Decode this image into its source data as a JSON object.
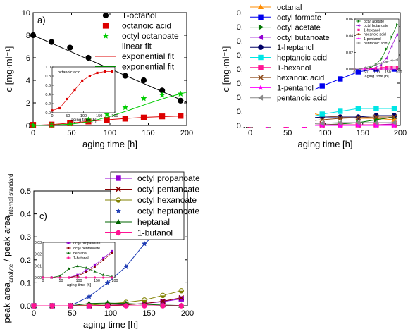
{
  "chart_data": [
    {
      "type": "scatter",
      "panel_label": "a)",
      "xlabel": "aging time [h]",
      "ylabel": "c [mg·ml⁻¹]",
      "xlim": [
        0,
        200
      ],
      "ylim": [
        0,
        10
      ],
      "xticks": [
        "0",
        "50",
        "100",
        "150",
        "200"
      ],
      "yticks": [
        "0",
        "2",
        "4",
        "6",
        "8",
        "10"
      ],
      "legend_position": "top-right",
      "series": [
        {
          "name": "1-octanol",
          "color": "#000000",
          "marker": "circle",
          "connect": false,
          "x": [
            0,
            24,
            48,
            72,
            96,
            120,
            144,
            168,
            192
          ],
          "y": [
            8.0,
            7.4,
            6.9,
            6.0,
            5.0,
            4.4,
            4.0,
            3.1,
            2.2
          ]
        },
        {
          "name": "octanoic acid",
          "color": "#dd0000",
          "marker": "square",
          "connect": false,
          "x": [
            0,
            24,
            48,
            72,
            96,
            120,
            144,
            168,
            192
          ],
          "y": [
            0.05,
            0.08,
            0.2,
            0.35,
            0.5,
            0.6,
            0.7,
            0.8,
            0.85
          ]
        },
        {
          "name": "octyl octanoate",
          "color": "#00cc00",
          "marker": "star",
          "connect": false,
          "x": [
            0,
            24,
            48,
            72,
            96,
            120,
            144,
            168,
            192
          ],
          "y": [
            0.0,
            0.05,
            0.15,
            0.5,
            1.0,
            1.6,
            2.4,
            2.7,
            2.8
          ]
        },
        {
          "name": "linear fit",
          "color": "#000000",
          "marker": "none",
          "connect": true,
          "x": [
            0,
            200
          ],
          "y": [
            8.0,
            2.05
          ]
        },
        {
          "name": "exponential fit",
          "color": "#dd0000",
          "marker": "none",
          "connect": true,
          "x": [
            0,
            25,
            50,
            75,
            100,
            125,
            150,
            175,
            200
          ],
          "y": [
            0.0,
            0.08,
            0.22,
            0.38,
            0.52,
            0.64,
            0.73,
            0.8,
            0.85
          ]
        },
        {
          "name": "exponential fit",
          "color": "#00cc00",
          "marker": "none",
          "connect": true,
          "x": [
            0,
            25,
            50,
            75,
            100,
            125,
            150,
            175,
            200
          ],
          "y": [
            0.0,
            0.03,
            0.12,
            0.35,
            0.8,
            1.35,
            1.95,
            2.5,
            2.95
          ]
        }
      ],
      "inset": {
        "xlabel": "aging time [h]",
        "xlim": [
          0,
          200
        ],
        "ylim": [
          0,
          1.0
        ],
        "xticks": [
          "0",
          "50",
          "100",
          "150",
          "200"
        ],
        "yticks": [
          "0.0",
          "0.2",
          "0.4",
          "0.6",
          "0.8",
          "1.0"
        ],
        "series": [
          {
            "name": "octanoic acid",
            "color": "#dd0000",
            "marker": "square",
            "connect": true,
            "x": [
              0,
              24,
              48,
              72,
              96,
              120,
              144,
              168,
              192
            ],
            "y": [
              0.05,
              0.1,
              0.3,
              0.5,
              0.7,
              0.8,
              0.87,
              0.9,
              0.9
            ]
          }
        ]
      }
    },
    {
      "type": "line",
      "panel_label": "b)",
      "xlabel": "aging time [h]",
      "ylabel": "c [mg·ml⁻¹]",
      "xlim": [
        0,
        200
      ],
      "ylim": [
        0,
        0.8
      ],
      "xticks": [
        "0",
        "50",
        "100",
        "150",
        "200"
      ],
      "yticks": [
        "0.0",
        "0.1",
        "0.2",
        "0.3",
        "0.4",
        "0.5",
        "0.6",
        "0.7",
        "0.8"
      ],
      "legend_position": "left",
      "series": [
        {
          "name": "octanal",
          "color": "#ff8c00",
          "marker": "triangle",
          "x": [
            0,
            24,
            48,
            72,
            96,
            120,
            144,
            168,
            192
          ],
          "y": [
            0.0,
            0.15,
            0.1,
            0.1,
            0.07,
            0.06,
            0.05,
            0.05,
            0.04
          ]
        },
        {
          "name": "octyl formate",
          "color": "#0000ee",
          "marker": "square",
          "x": [
            0,
            24,
            48,
            72,
            96,
            120,
            144,
            168,
            192
          ],
          "y": [
            0.0,
            0.02,
            0.12,
            0.22,
            0.28,
            0.33,
            0.38,
            0.4,
            0.4
          ]
        },
        {
          "name": "octyl acetate",
          "color": "#007700",
          "marker": "triangle-right",
          "x": [
            0,
            24,
            48,
            72,
            96,
            120,
            144,
            168,
            192
          ],
          "y": [
            0.0,
            0.0,
            0.0,
            0.0,
            0.005,
            0.01,
            0.02,
            0.04,
            0.06
          ]
        },
        {
          "name": "octyl butanoate",
          "color": "#9400d3",
          "marker": "triangle-left",
          "x": [
            0,
            24,
            48,
            72,
            96,
            120,
            144,
            168,
            192
          ],
          "y": [
            0.0,
            0.0,
            0.0,
            0.0,
            0.0,
            0.0,
            0.0,
            0.005,
            0.01
          ]
        },
        {
          "name": "1-heptanol",
          "color": "#000066",
          "marker": "circle",
          "x": [
            0,
            24,
            48,
            72,
            96,
            120,
            144,
            168,
            192
          ],
          "y": [
            0.0,
            0.03,
            0.04,
            0.05,
            0.06,
            0.06,
            0.06,
            0.07,
            0.07
          ]
        },
        {
          "name": "heptanoic acid",
          "color": "#00e5e5",
          "marker": "square",
          "x": [
            0,
            24,
            48,
            72,
            96,
            120,
            144,
            168,
            192
          ],
          "y": [
            0.0,
            0.02,
            0.03,
            0.05,
            0.08,
            0.1,
            0.12,
            0.12,
            0.12
          ]
        },
        {
          "name": "1-hexanol",
          "color": "#ff1493",
          "marker": "square",
          "x": [
            0,
            24,
            48,
            72,
            96,
            120,
            144,
            168,
            192
          ],
          "y": [
            0.0,
            0.0,
            0.0,
            0.0,
            0.005,
            0.005,
            0.005,
            0.005,
            0.005
          ]
        },
        {
          "name": "hexanoic acid",
          "color": "#8b4513",
          "marker": "x",
          "x": [
            0,
            24,
            48,
            72,
            96,
            120,
            144,
            168,
            192
          ],
          "y": [
            0.0,
            0.01,
            0.02,
            0.03,
            0.04,
            0.05,
            0.055,
            0.06,
            0.06
          ]
        },
        {
          "name": "1-pentanol",
          "color": "#ff00ff",
          "marker": "star",
          "x": [
            0,
            24,
            48,
            72,
            96,
            120,
            144,
            168,
            192
          ],
          "y": [
            0.0,
            0.0,
            0.0,
            0.0,
            0.0,
            0.0,
            0.0,
            0.0,
            0.0
          ]
        },
        {
          "name": "pentanoic acid",
          "color": "#888888",
          "marker": "triangle-left",
          "x": [
            0,
            24,
            48,
            72,
            96,
            120,
            144,
            168,
            192
          ],
          "y": [
            0.0,
            0.0,
            0.005,
            0.01,
            0.015,
            0.02,
            0.02,
            0.02,
            0.02
          ]
        }
      ],
      "inset": {
        "xlabel": "aging time [h]",
        "xlim": [
          0,
          200
        ],
        "ylim": [
          0,
          0.07
        ],
        "xticks": [
          "0",
          "50",
          "100",
          "150",
          "200"
        ],
        "yticks": [
          "0.00",
          "0.02",
          "0.04",
          "0.06"
        ],
        "legend_entries": [
          "octyl acetate",
          "octyl butanoate",
          "1-hexanol",
          "hexanoic acid",
          "1-pentanol",
          "pentanoic acid"
        ],
        "series": [
          {
            "name": "octyl acetate",
            "color": "#007700",
            "marker": "triangle-right",
            "x": [
              0,
              24,
              48,
              72,
              96,
              120,
              144,
              168,
              192
            ],
            "y": [
              0.0,
              0.0,
              0.0,
              0.002,
              0.006,
              0.014,
              0.028,
              0.045,
              0.062
            ]
          },
          {
            "name": "octyl butanoate",
            "color": "#9400d3",
            "marker": "triangle-left",
            "x": [
              0,
              24,
              48,
              72,
              96,
              120,
              144,
              168,
              192
            ],
            "y": [
              0.0,
              0.0,
              0.0,
              0.0,
              0.002,
              0.006,
              0.015,
              0.032,
              0.048
            ]
          },
          {
            "name": "1-hexanol",
            "color": "#ff1493",
            "marker": "square",
            "x": [
              0,
              24,
              48,
              72,
              96,
              120,
              144,
              168,
              192
            ],
            "y": [
              0.0,
              0.0,
              0.0,
              0.0,
              0.001,
              0.002,
              0.003,
              0.003,
              0.003
            ]
          },
          {
            "name": "hexanoic acid",
            "color": "#8b4513",
            "marker": "x",
            "x": [
              0,
              24,
              48,
              72,
              96,
              120,
              144,
              168,
              192
            ],
            "y": [
              0.0,
              0.0,
              0.0,
              0.0,
              0.0,
              0.0,
              0.0,
              0.0,
              0.0
            ]
          },
          {
            "name": "1-pentanol",
            "color": "#ff00ff",
            "marker": "star",
            "x": [
              0,
              24,
              48,
              72,
              96,
              120,
              144,
              168,
              192
            ],
            "y": [
              0.0,
              0.0,
              0.0,
              0.0,
              0.0,
              0.0,
              0.0,
              0.0,
              0.0
            ]
          },
          {
            "name": "pentanoic acid",
            "color": "#888888",
            "marker": "triangle-left",
            "x": [
              0,
              24,
              48,
              72,
              96,
              120,
              144,
              168,
              192
            ],
            "y": [
              0.0,
              0.0,
              0.002,
              0.004,
              0.006,
              0.008,
              0.01,
              0.012,
              0.013
            ]
          }
        ]
      }
    },
    {
      "type": "line",
      "panel_label": "c)",
      "xlabel": "aging time [h]",
      "ylabel_parts": [
        "peak area",
        "analyte",
        " / peak area",
        "internal standard"
      ],
      "xlim": [
        0,
        200
      ],
      "ylim": [
        0,
        0.5
      ],
      "xticks": [
        "0",
        "50",
        "100",
        "150",
        "200"
      ],
      "yticks": [
        "0.0",
        "0.1",
        "0.2",
        "0.3",
        "0.4",
        "0.5"
      ],
      "legend_position": "top-center",
      "series": [
        {
          "name": "octyl propanoate",
          "color": "#9400d3",
          "marker": "square",
          "x": [
            0,
            24,
            48,
            72,
            96,
            120,
            144,
            168,
            192
          ],
          "y": [
            0.0,
            0.0,
            0.0,
            0.0,
            0.002,
            0.005,
            0.01,
            0.018,
            0.03
          ]
        },
        {
          "name": "octyl pentanoate",
          "color": "#8b0000",
          "marker": "x",
          "x": [
            0,
            24,
            48,
            72,
            96,
            120,
            144,
            168,
            192
          ],
          "y": [
            0.0,
            0.0,
            0.0,
            0.0,
            0.002,
            0.004,
            0.01,
            0.02,
            0.035
          ]
        },
        {
          "name": "octyl hexanoate",
          "color": "#808000",
          "marker": "circle-half",
          "x": [
            0,
            24,
            48,
            72,
            96,
            120,
            144,
            168,
            192
          ],
          "y": [
            0.0,
            0.0,
            0.0,
            0.003,
            0.008,
            0.015,
            0.025,
            0.045,
            0.065
          ]
        },
        {
          "name": "octyl heptanoate",
          "color": "#1e3cb4",
          "marker": "star",
          "x": [
            0,
            24,
            48,
            72,
            96,
            120,
            144,
            168,
            192
          ],
          "y": [
            0.0,
            0.0,
            0.0,
            0.04,
            0.1,
            0.17,
            0.27,
            0.34,
            0.42
          ]
        },
        {
          "name": "heptanal",
          "color": "#006400",
          "marker": "triangle",
          "x": [
            0,
            24,
            48,
            72,
            96,
            120,
            144,
            168,
            192
          ],
          "y": [
            0.0,
            0.0,
            0.0,
            0.01,
            0.012,
            0.01,
            0.006,
            0.003,
            0.001
          ]
        },
        {
          "name": "1-butanol",
          "color": "#ff1493",
          "marker": "circle",
          "x": [
            0,
            24,
            48,
            72,
            96,
            120,
            144,
            168,
            192
          ],
          "y": [
            0.0,
            0.0,
            0.0,
            0.0,
            0.0,
            0.0,
            0.0,
            0.0,
            0.0
          ]
        }
      ],
      "inset": {
        "xlabel": "aging time [h]",
        "xlim": [
          0,
          200
        ],
        "ylim": [
          0,
          0.04
        ],
        "xticks": [
          "0",
          "50",
          "100",
          "150",
          "200"
        ],
        "yticks": [
          "0.00",
          "0.01",
          "0.02",
          "0.03"
        ],
        "legend_entries": [
          "octyl propanoate",
          "octyl pentanoate",
          "heptanal",
          "1-butanol"
        ],
        "series": [
          {
            "name": "octyl propanoate",
            "color": "#9400d3",
            "marker": "square",
            "x": [
              0,
              24,
              48,
              72,
              96,
              120,
              144,
              168,
              192
            ],
            "y": [
              0.0,
              0.0,
              0.0,
              0.0,
              0.003,
              0.008,
              0.014,
              0.022,
              0.03
            ]
          },
          {
            "name": "octyl pentanoate",
            "color": "#8b0000",
            "marker": "x",
            "x": [
              0,
              24,
              48,
              72,
              96,
              120,
              144,
              168,
              192
            ],
            "y": [
              0.0,
              0.0,
              0.0,
              0.0,
              0.002,
              0.006,
              0.012,
              0.02,
              0.028
            ]
          },
          {
            "name": "heptanal",
            "color": "#006400",
            "marker": "triangle",
            "x": [
              0,
              24,
              48,
              72,
              96,
              120,
              144,
              168,
              192
            ],
            "y": [
              0.0,
              0.0,
              0.002,
              0.01,
              0.013,
              0.011,
              0.007,
              0.003,
              0.001
            ]
          },
          {
            "name": "1-butanol",
            "color": "#ff1493",
            "marker": "circle",
            "x": [
              0,
              24,
              48,
              72,
              96,
              120,
              144,
              168,
              192
            ],
            "y": [
              0.0,
              0.0,
              0.0,
              0.0,
              0.0,
              0.0,
              0.0,
              0.0,
              0.0
            ]
          }
        ]
      }
    }
  ]
}
